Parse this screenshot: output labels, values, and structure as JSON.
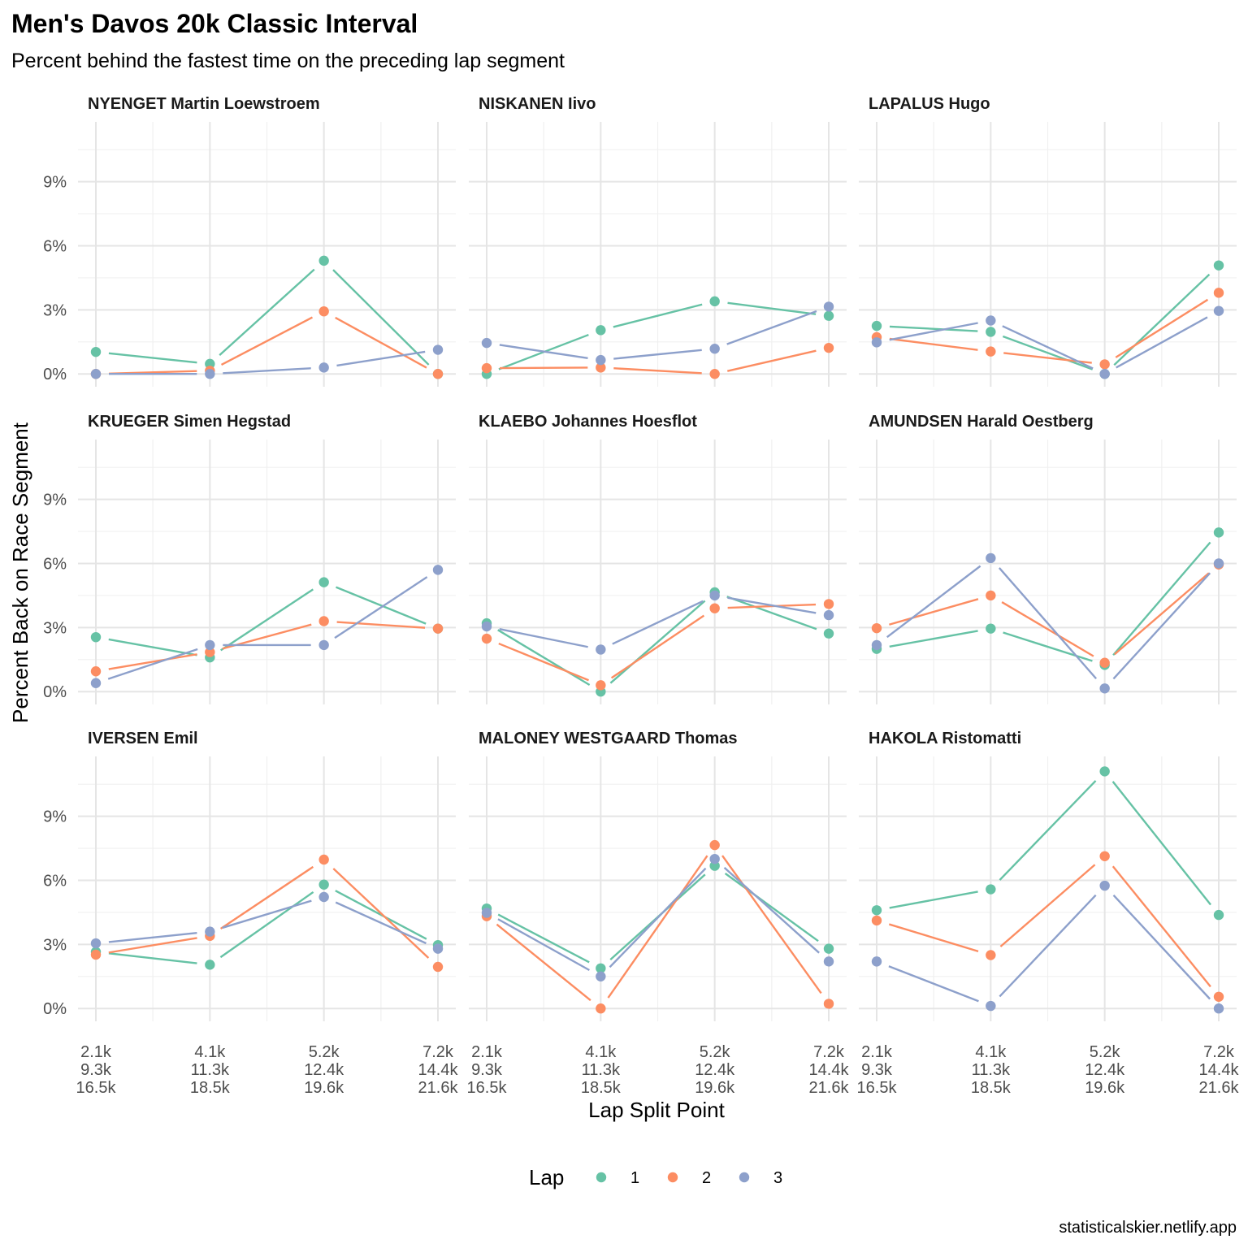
{
  "title": "Men's Davos 20k Classic Interval",
  "subtitle": "Percent behind the fastest time on the preceding lap segment",
  "caption": "statisticalskier.netlify.app",
  "colors": {
    "1": "#66C2A5",
    "2": "#FC8D62",
    "3": "#8DA0CB"
  },
  "chart_data": {
    "type": "line",
    "xlabel": "Lap Split Point",
    "ylabel": "Percent Back on Race Segment",
    "x_tick_labels": [
      "2.1k\n9.3k\n16.5k",
      "4.1k\n11.3k\n18.5k",
      "5.2k\n12.4k\n19.6k",
      "7.2k\n14.4k\n21.6k"
    ],
    "y_ticks": [
      0,
      3,
      6,
      9
    ],
    "y_tick_labels": [
      "0%",
      "3%",
      "6%",
      "9%"
    ],
    "ylim": [
      -0.6,
      11.8
    ],
    "legend": {
      "title": "Lap",
      "placement": "bottom",
      "entries": [
        "1",
        "2",
        "3"
      ]
    },
    "panels": [
      {
        "athlete": "NYENGET Martin Loewstroem",
        "series": [
          {
            "lap": "1",
            "values": [
              1.03,
              0.47,
              5.3,
              0.0
            ]
          },
          {
            "lap": "2",
            "values": [
              0.0,
              0.15,
              2.93,
              0.0
            ]
          },
          {
            "lap": "3",
            "values": [
              0.0,
              0.0,
              0.3,
              1.13
            ]
          }
        ]
      },
      {
        "athlete": "NISKANEN Iivo",
        "series": [
          {
            "lap": "1",
            "values": [
              0.0,
              2.05,
              3.4,
              2.72
            ]
          },
          {
            "lap": "2",
            "values": [
              0.27,
              0.3,
              0.0,
              1.22
            ]
          },
          {
            "lap": "3",
            "values": [
              1.45,
              0.65,
              1.18,
              3.15
            ]
          }
        ]
      },
      {
        "athlete": "LAPALUS Hugo",
        "series": [
          {
            "lap": "1",
            "values": [
              2.25,
              1.97,
              0.0,
              5.08
            ]
          },
          {
            "lap": "2",
            "values": [
              1.72,
              1.05,
              0.45,
              3.8
            ]
          },
          {
            "lap": "3",
            "values": [
              1.48,
              2.5,
              0.0,
              2.95
            ]
          }
        ]
      },
      {
        "athlete": "KRUEGER Simen Hegstad",
        "series": [
          {
            "lap": "1",
            "values": [
              2.55,
              1.6,
              5.12,
              2.95
            ]
          },
          {
            "lap": "2",
            "values": [
              0.95,
              1.85,
              3.3,
              2.95
            ]
          },
          {
            "lap": "3",
            "values": [
              0.4,
              2.18,
              2.18,
              5.7
            ]
          }
        ]
      },
      {
        "athlete": "KLAEBO Johannes Hoesflot",
        "series": [
          {
            "lap": "1",
            "values": [
              3.2,
              0.0,
              4.65,
              2.72
            ]
          },
          {
            "lap": "2",
            "values": [
              2.48,
              0.3,
              3.9,
              4.1
            ]
          },
          {
            "lap": "3",
            "values": [
              3.05,
              1.97,
              4.5,
              3.58
            ]
          }
        ]
      },
      {
        "athlete": "AMUNDSEN Harald Oestberg",
        "series": [
          {
            "lap": "1",
            "values": [
              2.0,
              2.95,
              1.25,
              7.45
            ]
          },
          {
            "lap": "2",
            "values": [
              2.97,
              4.5,
              1.35,
              5.95
            ]
          },
          {
            "lap": "3",
            "values": [
              2.18,
              6.25,
              0.15,
              6.0
            ]
          }
        ]
      },
      {
        "athlete": "IVERSEN Emil",
        "series": [
          {
            "lap": "1",
            "values": [
              2.65,
              2.05,
              5.8,
              2.97
            ]
          },
          {
            "lap": "2",
            "values": [
              2.52,
              3.4,
              6.97,
              1.95
            ]
          },
          {
            "lap": "3",
            "values": [
              3.05,
              3.6,
              5.22,
              2.8
            ]
          }
        ]
      },
      {
        "athlete": "MALONEY WESTGAARD Thomas",
        "series": [
          {
            "lap": "1",
            "values": [
              4.68,
              1.88,
              6.68,
              2.8
            ]
          },
          {
            "lap": "2",
            "values": [
              4.32,
              0.0,
              7.65,
              0.22
            ]
          },
          {
            "lap": "3",
            "values": [
              4.48,
              1.5,
              7.0,
              2.2
            ]
          }
        ]
      },
      {
        "athlete": "HAKOLA Ristomatti",
        "series": [
          {
            "lap": "1",
            "values": [
              4.6,
              5.58,
              11.1,
              4.38
            ]
          },
          {
            "lap": "2",
            "values": [
              4.12,
              2.5,
              7.13,
              0.55
            ]
          },
          {
            "lap": "3",
            "values": [
              2.2,
              0.12,
              5.75,
              0.0
            ]
          }
        ]
      }
    ]
  }
}
